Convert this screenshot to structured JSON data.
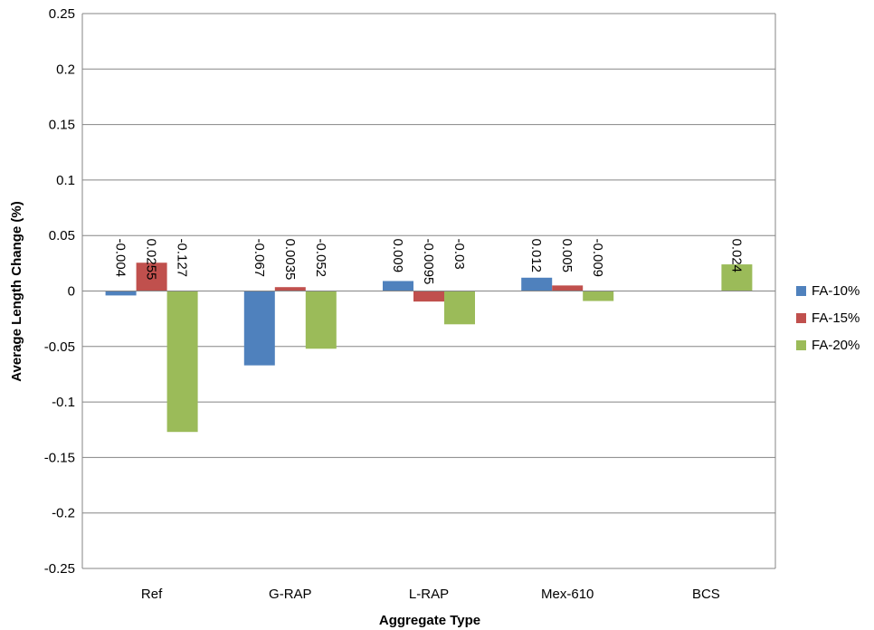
{
  "chart_data": {
    "type": "bar",
    "title": "",
    "xlabel": "Aggregate Type",
    "ylabel": "Average Length Change (%)",
    "categories": [
      "Ref",
      "G-RAP",
      "L-RAP",
      "Mex-610",
      "BCS"
    ],
    "ylim": [
      -0.25,
      0.25
    ],
    "yticks": [
      0.25,
      0.2,
      0.15,
      0.1,
      0.05,
      0,
      -0.05,
      -0.1,
      -0.15,
      -0.2,
      -0.25
    ],
    "ytick_labels": [
      "0.25",
      "0.2",
      "0.15",
      "0.1",
      "0.05",
      "0",
      "-0.05",
      "-0.1",
      "-0.15",
      "-0.2",
      "-0.25"
    ],
    "grid": true,
    "legend_position": "right",
    "series": [
      {
        "name": "FA-10%",
        "color": "#4f81bd",
        "values": [
          -0.004,
          -0.067,
          0.009,
          0.012,
          null
        ],
        "labels": [
          "-0.004",
          "-0.067",
          "0.009",
          "0.012",
          ""
        ]
      },
      {
        "name": "FA-15%",
        "color": "#c0504d",
        "values": [
          0.0255,
          0.0035,
          -0.0095,
          0.005,
          null
        ],
        "labels": [
          "0.0255",
          "0.0035",
          "-0.0095",
          "0.005",
          ""
        ]
      },
      {
        "name": "FA-20%",
        "color": "#9bbb59",
        "values": [
          -0.127,
          -0.052,
          -0.03,
          -0.009,
          0.024
        ],
        "labels": [
          "-0.127",
          "-0.052",
          "-0.03",
          "-0.009",
          "0.024"
        ]
      }
    ]
  }
}
